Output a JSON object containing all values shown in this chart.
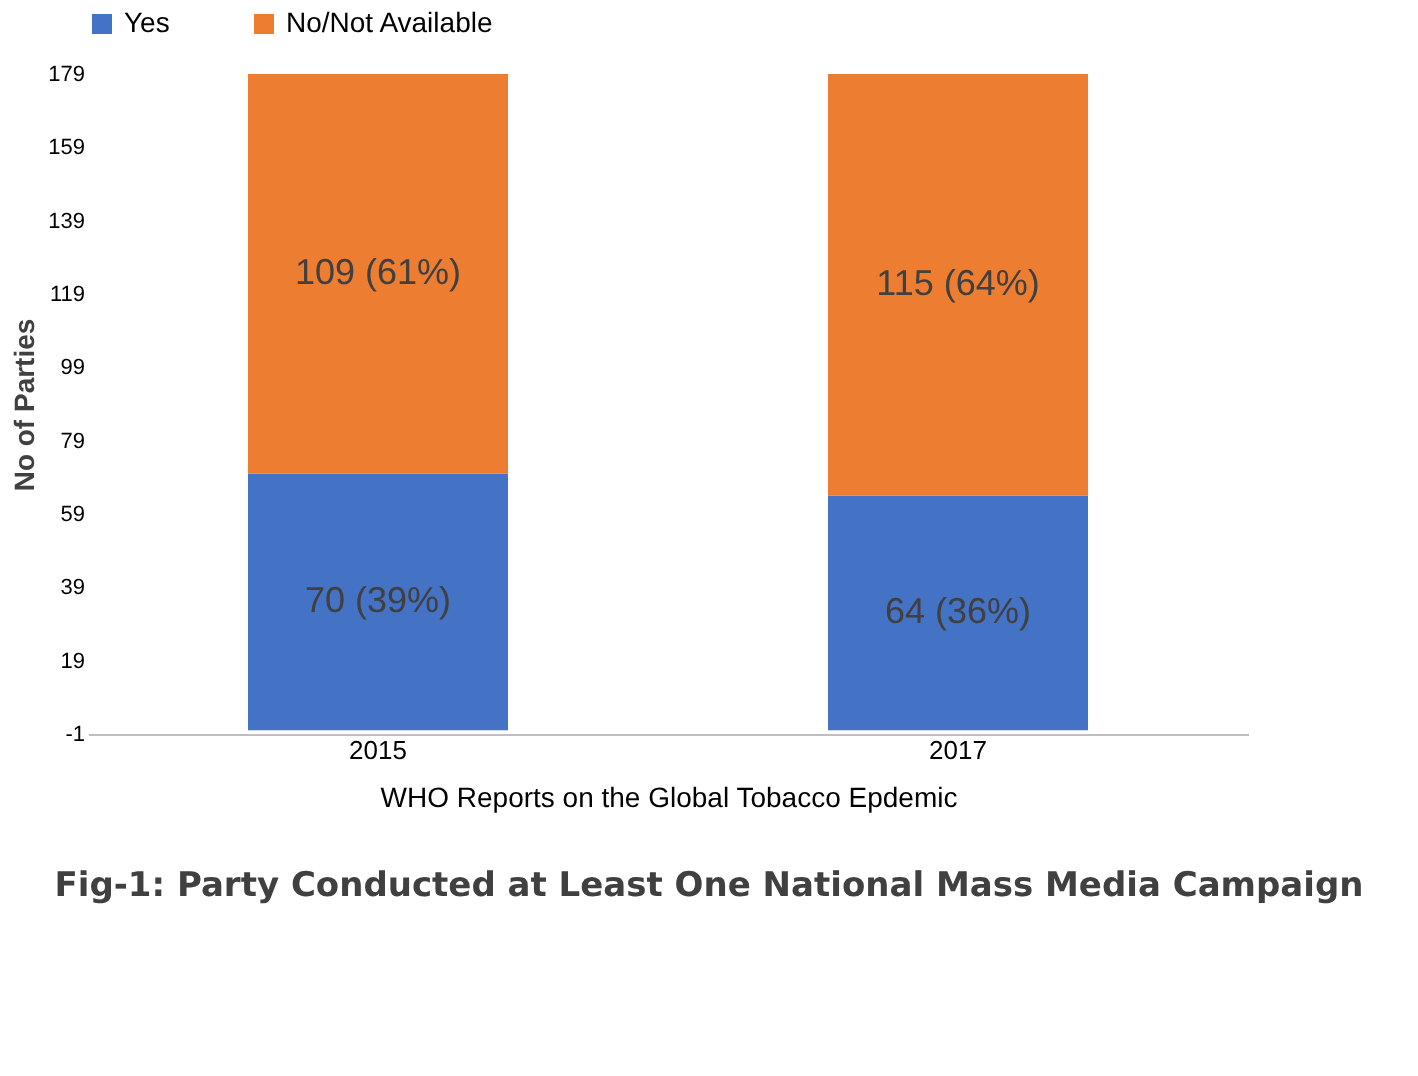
{
  "chart_data": {
    "type": "bar",
    "stacked": true,
    "categories": [
      "2015",
      "2017"
    ],
    "series": [
      {
        "name": "Yes",
        "color": "#4472c4",
        "values": [
          70,
          64
        ],
        "value_labels": [
          "70 (39%)",
          "64 (36%)"
        ]
      },
      {
        "name": "No/Not Available",
        "color": "#ed7d31",
        "values": [
          109,
          115
        ],
        "value_labels": [
          "109 (61%)",
          "115 (64%)"
        ]
      }
    ],
    "ylim": [
      -1,
      179
    ],
    "yticks": [
      -1,
      19,
      39,
      59,
      79,
      99,
      119,
      139,
      159,
      179
    ],
    "ylabel": "No of Parties",
    "xlabel": "WHO Reports on the Global Tobacco Epdemic",
    "legend": "top",
    "grid": false,
    "annotations": [
      "Fig-1:  Party Conducted at Least One National Mass Media Campaign"
    ]
  }
}
